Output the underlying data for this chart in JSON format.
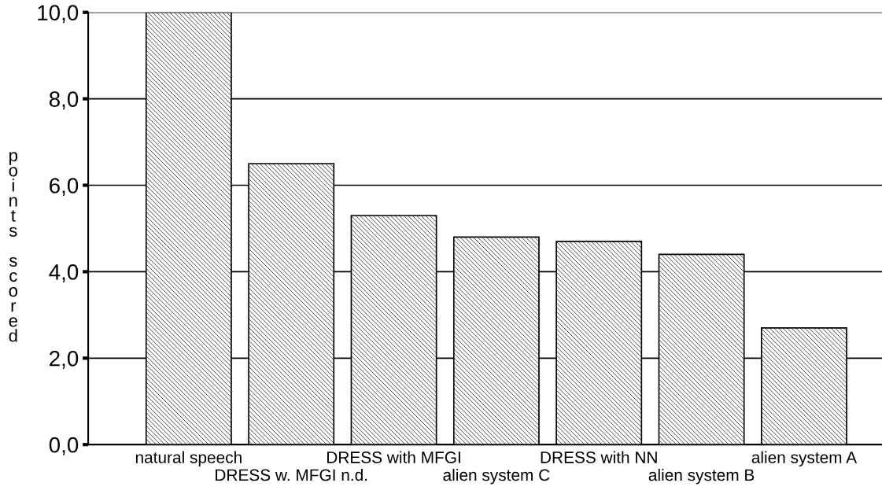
{
  "chart_data": {
    "type": "bar",
    "ylabel": "points scored",
    "categories": [
      "natural speech",
      "DRESS w. MFGI n.d.",
      "DRESS with MFGI",
      "alien system C",
      "DRESS with NN",
      "alien system B",
      "alien system A"
    ],
    "values": [
      10.0,
      6.5,
      5.3,
      4.8,
      4.7,
      4.4,
      2.7
    ],
    "color": "#000000",
    "ylim": [
      0,
      10
    ],
    "yticks": [
      {
        "value": 0,
        "label": "0,0"
      },
      {
        "value": 2,
        "label": "2,0"
      },
      {
        "value": 4,
        "label": "4,0"
      },
      {
        "value": 6,
        "label": "6,0"
      },
      {
        "value": 8,
        "label": "8,0"
      },
      {
        "value": 10,
        "label": "10,0"
      }
    ],
    "grid": "y"
  }
}
